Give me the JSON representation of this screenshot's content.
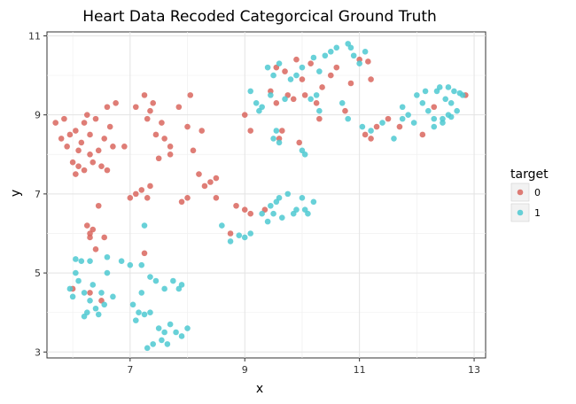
{
  "chart_data": {
    "type": "scatter",
    "title": "Heart Data Recoded Categorcical Ground Truth",
    "xlabel": "x",
    "ylabel": "y",
    "xlim": [
      5.55,
      13.2
    ],
    "ylim": [
      2.85,
      11.1
    ],
    "x_ticks": [
      7,
      9,
      11,
      13
    ],
    "y_ticks": [
      3,
      5,
      7,
      9,
      11
    ],
    "x_tick_labels": [
      "7",
      "9",
      "11",
      "13"
    ],
    "y_tick_labels": [
      "3",
      "5",
      "7",
      "9",
      "11"
    ],
    "grid": true,
    "legend": {
      "title": "target",
      "placement": "right",
      "entries": [
        {
          "label": "0",
          "color": "#d9665e"
        },
        {
          "label": "1",
          "color": "#4ec9d1"
        }
      ]
    },
    "series": [
      {
        "name": "0",
        "color": "#d9665e",
        "points": [
          [
            5.7,
            8.8
          ],
          [
            5.8,
            8.4
          ],
          [
            5.85,
            8.9
          ],
          [
            5.9,
            8.2
          ],
          [
            5.95,
            8.5
          ],
          [
            6.0,
            7.8
          ],
          [
            6.05,
            8.6
          ],
          [
            6.1,
            7.7
          ],
          [
            6.1,
            8.1
          ],
          [
            6.15,
            8.3
          ],
          [
            6.2,
            7.6
          ],
          [
            6.2,
            8.8
          ],
          [
            6.25,
            9.0
          ],
          [
            6.3,
            8.0
          ],
          [
            6.3,
            8.5
          ],
          [
            6.35,
            7.8
          ],
          [
            6.4,
            8.9
          ],
          [
            6.45,
            8.1
          ],
          [
            6.5,
            7.7
          ],
          [
            6.55,
            8.4
          ],
          [
            6.6,
            9.2
          ],
          [
            6.65,
            8.7
          ],
          [
            6.7,
            8.2
          ],
          [
            6.75,
            9.3
          ],
          [
            6.9,
            8.2
          ],
          [
            6.6,
            7.6
          ],
          [
            6.05,
            7.5
          ],
          [
            7.0,
            6.9
          ],
          [
            7.1,
            7.0
          ],
          [
            7.2,
            7.1
          ],
          [
            7.3,
            6.9
          ],
          [
            7.35,
            7.2
          ],
          [
            7.4,
            9.3
          ],
          [
            7.45,
            8.5
          ],
          [
            7.5,
            7.9
          ],
          [
            7.55,
            8.8
          ],
          [
            7.6,
            8.4
          ],
          [
            7.7,
            8.2
          ],
          [
            7.85,
            9.2
          ],
          [
            8.0,
            8.7
          ],
          [
            8.05,
            9.5
          ],
          [
            8.1,
            8.1
          ],
          [
            8.2,
            7.5
          ],
          [
            8.3,
            7.2
          ],
          [
            8.4,
            7.3
          ],
          [
            7.9,
            6.8
          ],
          [
            8.0,
            6.9
          ],
          [
            7.3,
            8.9
          ],
          [
            7.25,
            9.5
          ],
          [
            7.1,
            9.2
          ],
          [
            7.35,
            9.1
          ],
          [
            8.25,
            8.6
          ],
          [
            8.5,
            7.4
          ],
          [
            8.5,
            6.9
          ],
          [
            7.7,
            8.0
          ],
          [
            6.25,
            6.2
          ],
          [
            6.3,
            5.9
          ],
          [
            6.35,
            6.1
          ],
          [
            6.4,
            5.6
          ],
          [
            6.45,
            6.7
          ],
          [
            6.55,
            5.9
          ],
          [
            6.3,
            6.0
          ],
          [
            6.0,
            4.6
          ],
          [
            6.3,
            4.5
          ],
          [
            6.5,
            4.3
          ],
          [
            7.25,
            5.5
          ],
          [
            8.75,
            6.0
          ],
          [
            8.85,
            6.7
          ],
          [
            9.0,
            6.6
          ],
          [
            9.1,
            6.5
          ],
          [
            9.35,
            6.6
          ],
          [
            9.1,
            8.6
          ],
          [
            9.45,
            9.6
          ],
          [
            9.55,
            9.3
          ],
          [
            9.6,
            8.4
          ],
          [
            9.65,
            8.6
          ],
          [
            9.7,
            10.1
          ],
          [
            9.75,
            9.5
          ],
          [
            9.85,
            9.4
          ],
          [
            9.95,
            8.3
          ],
          [
            10.0,
            9.9
          ],
          [
            10.05,
            9.5
          ],
          [
            10.15,
            10.3
          ],
          [
            10.25,
            9.3
          ],
          [
            10.3,
            8.9
          ],
          [
            10.35,
            9.7
          ],
          [
            10.5,
            10.0
          ],
          [
            10.6,
            10.2
          ],
          [
            10.75,
            9.1
          ],
          [
            10.85,
            9.8
          ],
          [
            11.0,
            10.4
          ],
          [
            11.1,
            8.5
          ],
          [
            11.15,
            10.35
          ],
          [
            11.2,
            8.4
          ],
          [
            11.3,
            8.7
          ],
          [
            11.5,
            8.9
          ],
          [
            11.7,
            8.7
          ],
          [
            9.55,
            10.2
          ],
          [
            9.9,
            10.4
          ],
          [
            11.2,
            9.9
          ],
          [
            12.1,
            8.5
          ],
          [
            12.3,
            9.2
          ],
          [
            12.85,
            9.5
          ],
          [
            9.0,
            9.0
          ]
        ]
      },
      {
        "name": "1",
        "color": "#4ec9d1",
        "points": [
          [
            5.95,
            4.6
          ],
          [
            6.0,
            4.4
          ],
          [
            6.05,
            5.0
          ],
          [
            6.1,
            4.8
          ],
          [
            6.15,
            5.3
          ],
          [
            6.2,
            4.5
          ],
          [
            6.25,
            4.0
          ],
          [
            6.3,
            4.3
          ],
          [
            6.35,
            4.7
          ],
          [
            6.45,
            3.95
          ],
          [
            6.5,
            4.5
          ],
          [
            6.55,
            4.2
          ],
          [
            6.6,
            5.0
          ],
          [
            6.6,
            5.4
          ],
          [
            6.7,
            4.4
          ],
          [
            6.2,
            3.9
          ],
          [
            6.05,
            5.35
          ],
          [
            6.4,
            4.1
          ],
          [
            6.3,
            5.3
          ],
          [
            7.0,
            5.2
          ],
          [
            7.05,
            4.2
          ],
          [
            7.1,
            3.8
          ],
          [
            7.15,
            4.0
          ],
          [
            7.2,
            4.5
          ],
          [
            7.2,
            5.2
          ],
          [
            7.25,
            3.95
          ],
          [
            7.3,
            3.1
          ],
          [
            7.35,
            4.9
          ],
          [
            7.4,
            3.2
          ],
          [
            7.45,
            4.8
          ],
          [
            7.5,
            3.6
          ],
          [
            7.55,
            3.3
          ],
          [
            7.6,
            4.6
          ],
          [
            7.65,
            3.2
          ],
          [
            7.7,
            3.7
          ],
          [
            7.75,
            4.8
          ],
          [
            7.8,
            3.5
          ],
          [
            7.85,
            4.6
          ],
          [
            7.9,
            3.4
          ],
          [
            8.0,
            3.6
          ],
          [
            7.35,
            4.0
          ],
          [
            7.9,
            4.7
          ],
          [
            7.25,
            6.2
          ],
          [
            6.85,
            5.3
          ],
          [
            7.6,
            3.5
          ],
          [
            8.6,
            6.2
          ],
          [
            8.75,
            5.8
          ],
          [
            8.9,
            5.95
          ],
          [
            9.0,
            5.9
          ],
          [
            9.3,
            6.5
          ],
          [
            9.45,
            6.7
          ],
          [
            9.5,
            6.5
          ],
          [
            9.55,
            6.8
          ],
          [
            9.65,
            6.4
          ],
          [
            9.75,
            7.0
          ],
          [
            9.85,
            6.5
          ],
          [
            9.9,
            6.6
          ],
          [
            10.0,
            6.9
          ],
          [
            10.05,
            6.6
          ],
          [
            10.1,
            6.5
          ],
          [
            9.4,
            6.3
          ],
          [
            9.6,
            6.9
          ],
          [
            10.2,
            6.8
          ],
          [
            9.1,
            6.0
          ],
          [
            9.1,
            9.6
          ],
          [
            9.2,
            9.3
          ],
          [
            9.3,
            9.2
          ],
          [
            9.45,
            9.5
          ],
          [
            9.5,
            8.4
          ],
          [
            9.55,
            8.6
          ],
          [
            9.6,
            8.3
          ],
          [
            9.7,
            9.4
          ],
          [
            9.8,
            9.9
          ],
          [
            9.9,
            10.0
          ],
          [
            10.0,
            8.1
          ],
          [
            10.05,
            8.0
          ],
          [
            10.15,
            9.4
          ],
          [
            10.25,
            9.5
          ],
          [
            10.3,
            9.1
          ],
          [
            10.4,
            10.5
          ],
          [
            10.5,
            10.6
          ],
          [
            10.6,
            10.7
          ],
          [
            10.7,
            9.3
          ],
          [
            10.8,
            10.8
          ],
          [
            10.9,
            10.5
          ],
          [
            11.0,
            10.3
          ],
          [
            11.05,
            8.7
          ],
          [
            11.1,
            10.6
          ],
          [
            9.4,
            10.2
          ],
          [
            9.6,
            10.3
          ],
          [
            9.5,
            10.0
          ],
          [
            10.0,
            10.2
          ],
          [
            10.3,
            10.1
          ],
          [
            10.8,
            8.9
          ],
          [
            11.2,
            8.6
          ],
          [
            11.4,
            8.8
          ],
          [
            11.6,
            8.4
          ],
          [
            9.25,
            9.1
          ],
          [
            10.85,
            10.7
          ],
          [
            10.2,
            10.45
          ],
          [
            11.75,
            9.2
          ],
          [
            11.85,
            9.0
          ],
          [
            11.95,
            8.8
          ],
          [
            12.0,
            9.5
          ],
          [
            12.1,
            9.3
          ],
          [
            12.2,
            9.1
          ],
          [
            12.3,
            8.9
          ],
          [
            12.35,
            9.6
          ],
          [
            12.4,
            9.7
          ],
          [
            12.45,
            8.8
          ],
          [
            12.5,
            9.4
          ],
          [
            12.55,
            9.0
          ],
          [
            12.6,
            9.3
          ],
          [
            12.65,
            9.6
          ],
          [
            12.7,
            9.1
          ],
          [
            12.75,
            9.55
          ],
          [
            12.45,
            8.9
          ],
          [
            12.3,
            8.7
          ],
          [
            12.15,
            9.6
          ],
          [
            12.55,
            9.7
          ],
          [
            11.75,
            8.9
          ],
          [
            12.6,
            8.95
          ],
          [
            12.8,
            9.5
          ]
        ]
      }
    ]
  }
}
